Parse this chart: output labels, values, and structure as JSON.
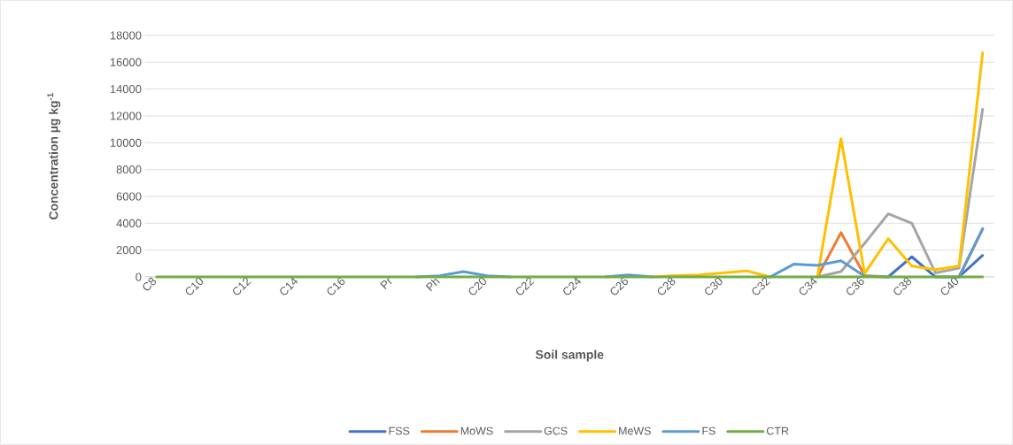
{
  "chart_data": {
    "type": "line",
    "xlabel": "Soil sample",
    "ylabel": "Concentration µg kg$^{-1}$",
    "categories": [
      "C8",
      null,
      "C10",
      null,
      "C12",
      null,
      "C14",
      null,
      "C16",
      null,
      "Pr",
      null,
      "Ph",
      null,
      "C20",
      null,
      "C22",
      null,
      "C24",
      null,
      "C26",
      null,
      "C28",
      null,
      "C30",
      null,
      "C32",
      null,
      "C34",
      null,
      "C36",
      null,
      "C38",
      null,
      "C40",
      null
    ],
    "ylim": [
      0,
      18000
    ],
    "yticks": [
      0,
      2000,
      4000,
      6000,
      8000,
      10000,
      12000,
      14000,
      16000,
      18000
    ],
    "grid": "y",
    "legend": "bottom",
    "marker": "none",
    "line_style": "solid",
    "series": [
      {
        "name": "FSS",
        "color": "#4472c4",
        "values": [
          null,
          null,
          null,
          null,
          null,
          null,
          null,
          null,
          null,
          null,
          null,
          null,
          null,
          null,
          null,
          null,
          null,
          null,
          null,
          null,
          null,
          null,
          null,
          null,
          null,
          null,
          null,
          null,
          null,
          null,
          null,
          0,
          1500,
          0,
          0,
          1600
        ]
      },
      {
        "name": "MoWS",
        "color": "#ed7d31",
        "values": [
          null,
          null,
          null,
          null,
          null,
          null,
          null,
          null,
          null,
          null,
          null,
          null,
          null,
          null,
          null,
          null,
          null,
          null,
          null,
          null,
          null,
          null,
          null,
          null,
          null,
          null,
          null,
          null,
          0,
          3300,
          100,
          0,
          null,
          null,
          0,
          3550
        ]
      },
      {
        "name": "GCS",
        "color": "#a5a5a5",
        "values": [
          null,
          null,
          null,
          null,
          null,
          null,
          null,
          null,
          null,
          null,
          null,
          null,
          null,
          null,
          null,
          null,
          null,
          null,
          null,
          null,
          null,
          null,
          null,
          null,
          null,
          null,
          null,
          null,
          0,
          400,
          2500,
          4700,
          4000,
          300,
          650,
          12500
        ]
      },
      {
        "name": "MeWS",
        "color": "#ffc000",
        "values": [
          null,
          null,
          null,
          null,
          null,
          null,
          null,
          null,
          null,
          null,
          null,
          null,
          null,
          null,
          null,
          null,
          null,
          null,
          null,
          null,
          null,
          0,
          100,
          150,
          300,
          450,
          0,
          null,
          0,
          10300,
          250,
          2850,
          800,
          550,
          800,
          16700
        ]
      },
      {
        "name": "FS",
        "color": "#5b9bd5",
        "values": [
          null,
          null,
          null,
          null,
          null,
          null,
          null,
          null,
          null,
          null,
          null,
          0,
          80,
          400,
          80,
          0,
          null,
          null,
          null,
          0,
          150,
          0,
          null,
          null,
          null,
          null,
          0,
          950,
          850,
          1200,
          50,
          0,
          null,
          null,
          0,
          3600
        ]
      },
      {
        "name": "CTR",
        "color": "#70ad47",
        "values": [
          0,
          0,
          0,
          0,
          0,
          0,
          0,
          0,
          0,
          0,
          0,
          0,
          0,
          0,
          0,
          0,
          0,
          0,
          0,
          0,
          0,
          0,
          0,
          0,
          0,
          0,
          0,
          0,
          0,
          0,
          0,
          0,
          0,
          0,
          0,
          0
        ]
      }
    ]
  }
}
